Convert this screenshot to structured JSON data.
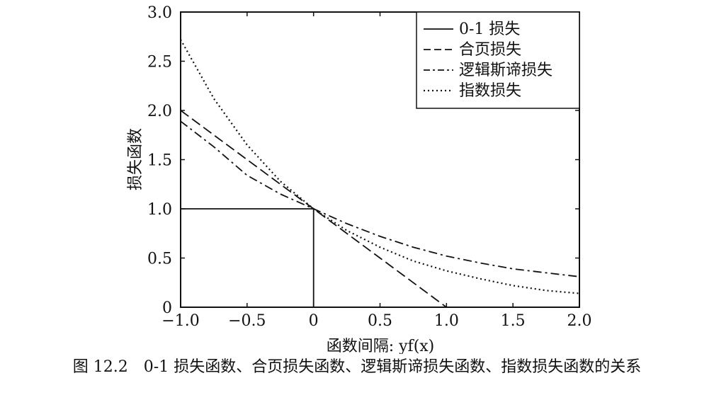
{
  "chart_data": {
    "type": "line",
    "title": "",
    "xlabel": "函数间隔: yf(x)",
    "ylabel": "损失函数",
    "xlim": [
      -1.0,
      2.0
    ],
    "ylim": [
      0,
      3.0
    ],
    "xticks": [
      "−1.0",
      "−0.5",
      "0",
      "0.5",
      "1.0",
      "1.5",
      "2.0"
    ],
    "xtick_values": [
      -1.0,
      -0.5,
      0,
      0.5,
      1.0,
      1.5,
      2.0
    ],
    "yticks": [
      "0",
      "0.5",
      "1.0",
      "1.5",
      "2.0",
      "2.5",
      "3.0"
    ],
    "ytick_values": [
      0,
      0.5,
      1.0,
      1.5,
      2.0,
      2.5,
      3.0
    ],
    "grid": false,
    "legend_position": "top-right",
    "series": [
      {
        "name": "0-1 损失",
        "style": "solid",
        "x": [
          -1.0,
          0,
          0,
          2.0
        ],
        "y": [
          1.0,
          1.0,
          0,
          0
        ]
      },
      {
        "name": "合页损失",
        "style": "dashed",
        "x": [
          -1.0,
          -0.5,
          0,
          0.5,
          1.0,
          1.5,
          2.0
        ],
        "y": [
          2.0,
          1.5,
          1.0,
          0.5,
          0,
          0,
          0
        ]
      },
      {
        "name": "逻辑斯谛损失",
        "style": "dashdot",
        "x": [
          -1.0,
          -0.75,
          -0.5,
          -0.25,
          0,
          0.25,
          0.5,
          0.75,
          1.0,
          1.25,
          1.5,
          1.75,
          2.0
        ],
        "y": [
          1.89,
          1.63,
          1.34,
          1.15,
          1.0,
          0.85,
          0.72,
          0.61,
          0.52,
          0.45,
          0.39,
          0.35,
          0.31
        ]
      },
      {
        "name": "指数损失",
        "style": "dotted",
        "x": [
          -1.0,
          -0.75,
          -0.5,
          -0.25,
          0,
          0.25,
          0.5,
          0.75,
          1.0,
          1.25,
          1.5,
          1.75,
          2.0
        ],
        "y": [
          2.72,
          2.12,
          1.65,
          1.28,
          1.0,
          0.78,
          0.61,
          0.47,
          0.37,
          0.29,
          0.22,
          0.17,
          0.14
        ]
      }
    ]
  },
  "caption": "图 12.2　0-1 损失函数、合页损失函数、逻辑斯谛损失函数、指数损失函数的关系"
}
